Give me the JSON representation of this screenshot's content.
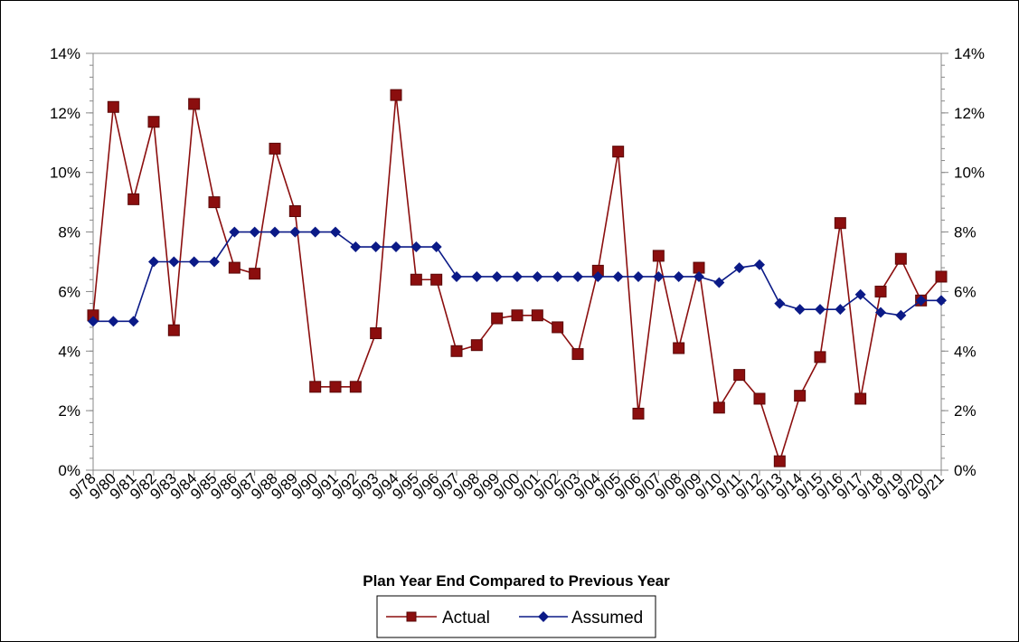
{
  "chart_data": {
    "type": "line",
    "title": "",
    "xlabel": "Plan Year End Compared to Previous Year",
    "ylabel": "",
    "ylim": [
      0,
      14
    ],
    "y_tick_step": 2,
    "y_minor_step": 0.4,
    "y_tick_labels": [
      "0%",
      "2%",
      "4%",
      "6%",
      "8%",
      "10%",
      "12%",
      "14%"
    ],
    "y_axis_right": true,
    "grid": false,
    "legend_position": "bottom-center",
    "categories": [
      "9/78",
      "9/80",
      "9/81",
      "9/82",
      "9/83",
      "9/84",
      "9/85",
      "9/86",
      "9/87",
      "9/88",
      "9/89",
      "9/90",
      "9/91",
      "9/92",
      "9/93",
      "9/94",
      "9/95",
      "9/96",
      "9/97",
      "9/98",
      "9/99",
      "9/00",
      "9/01",
      "9/02",
      "9/03",
      "9/04",
      "9/05",
      "9/06",
      "9/07",
      "9/08",
      "9/09",
      "9/10",
      "9/11",
      "9/12",
      "9/13",
      "9/14",
      "9/15",
      "9/16",
      "9/17",
      "9/18",
      "9/19",
      "9/20",
      "9/21"
    ],
    "series": [
      {
        "name": "Actual",
        "color": "#8B0E0E",
        "marker": "square",
        "values": [
          5.2,
          12.2,
          9.1,
          11.7,
          4.7,
          12.3,
          9.0,
          6.8,
          6.6,
          10.8,
          8.7,
          2.8,
          2.8,
          2.8,
          4.6,
          12.6,
          6.4,
          6.4,
          4.0,
          4.2,
          5.1,
          5.2,
          5.2,
          4.8,
          3.9,
          6.7,
          10.7,
          1.9,
          7.2,
          4.1,
          6.8,
          2.1,
          3.2,
          2.4,
          0.3,
          2.5,
          3.8,
          8.3,
          2.4,
          6.0,
          7.1,
          5.7,
          6.5
        ]
      },
      {
        "name": "Assumed",
        "color": "#0B1A87",
        "marker": "diamond",
        "values": [
          5.0,
          5.0,
          5.0,
          7.0,
          7.0,
          7.0,
          7.0,
          8.0,
          8.0,
          8.0,
          8.0,
          8.0,
          8.0,
          7.5,
          7.5,
          7.5,
          7.5,
          7.5,
          6.5,
          6.5,
          6.5,
          6.5,
          6.5,
          6.5,
          6.5,
          6.5,
          6.5,
          6.5,
          6.5,
          6.5,
          6.5,
          6.3,
          6.8,
          6.9,
          5.6,
          5.4,
          5.4,
          5.4,
          5.9,
          5.3,
          5.2,
          5.7,
          5.7
        ]
      }
    ]
  }
}
